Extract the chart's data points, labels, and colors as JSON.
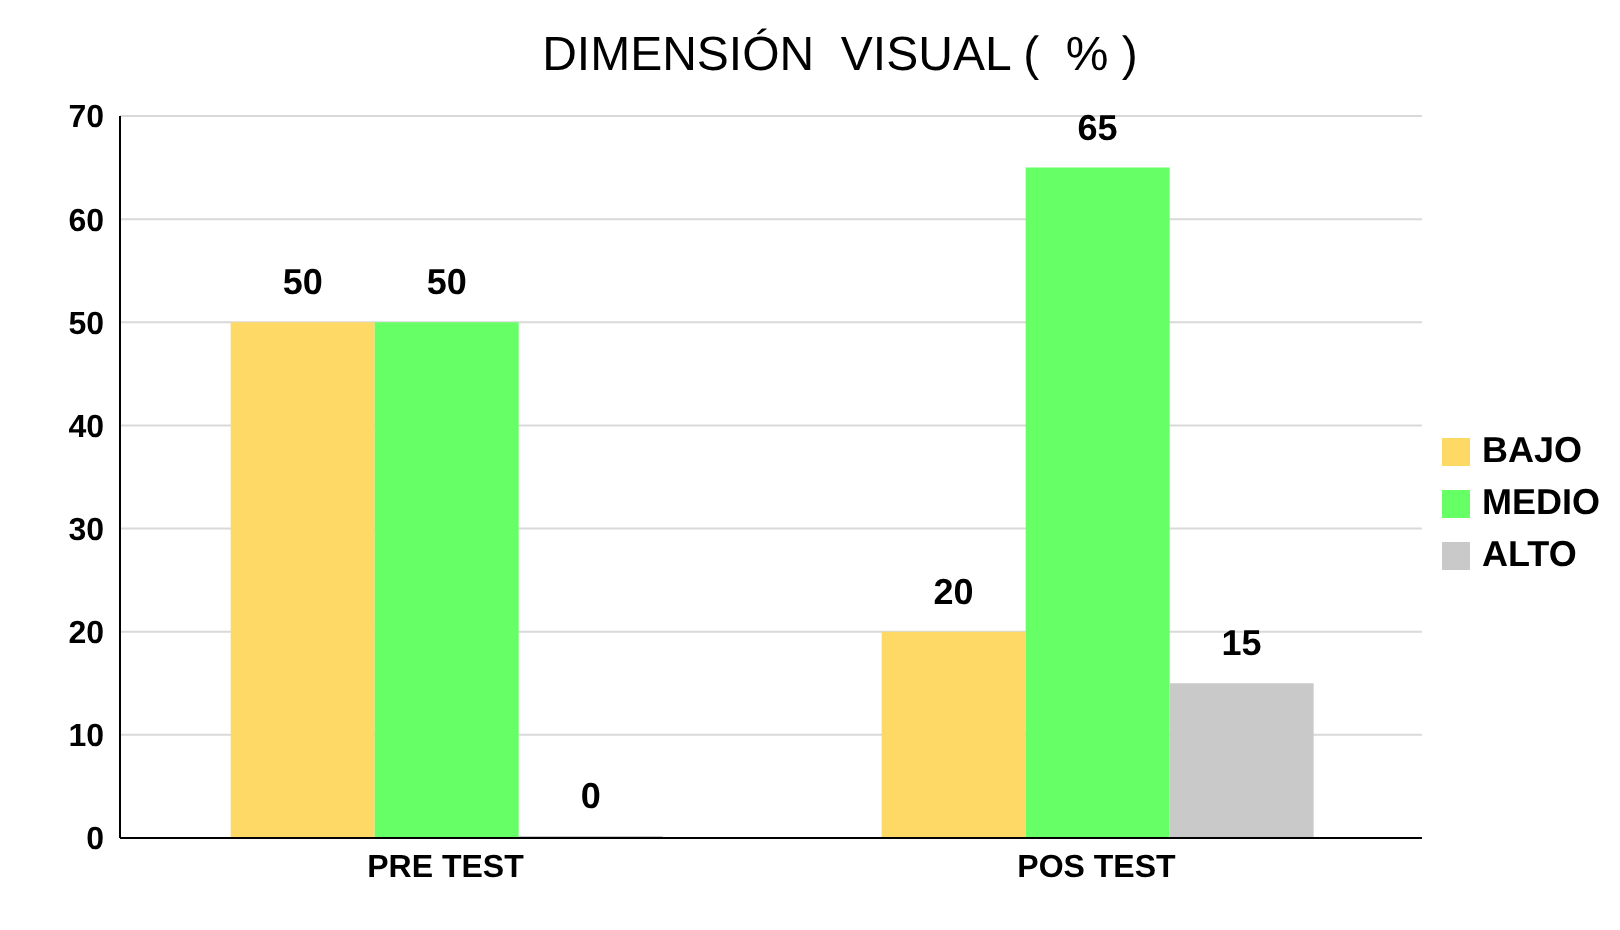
{
  "chart_data": {
    "type": "bar",
    "title": "DIMENSIÓN  VISUAL (  % )",
    "categories": [
      "PRE TEST",
      "POS TEST"
    ],
    "series": [
      {
        "name": "BAJO",
        "color": "#ffd966",
        "values": [
          50,
          20
        ]
      },
      {
        "name": "MEDIO",
        "color": "#66ff66",
        "values": [
          50,
          65
        ]
      },
      {
        "name": "ALTO",
        "color": "#c9c9c9",
        "values": [
          0,
          15
        ]
      }
    ],
    "ylim": [
      0,
      70
    ],
    "yticks": [
      0,
      10,
      20,
      30,
      40,
      50,
      60,
      70
    ],
    "grid": "y",
    "legend": "right",
    "data_labels": true
  }
}
